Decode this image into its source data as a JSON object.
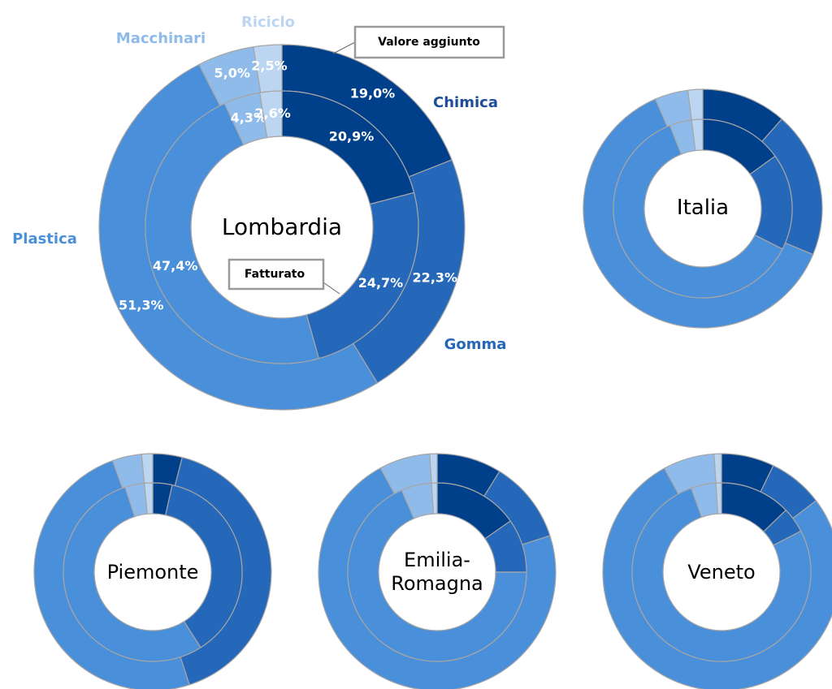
{
  "chart_data": [
    {
      "type": "doughnut",
      "title": "Lombardia",
      "categories": [
        "Chimica",
        "Gomma",
        "Plastica",
        "Macchinari",
        "Riciclo"
      ],
      "colors": [
        "#003f8a",
        "#2567b8",
        "#4a8fd9",
        "#8fbbea",
        "#bcd6f2"
      ],
      "series": [
        {
          "name": "Valore aggiunto",
          "values": [
            19.0,
            22.3,
            51.3,
            5.0,
            2.5
          ],
          "value_labels": [
            "19,0%",
            "22,3%",
            "51,3%",
            "5,0%",
            "2,5%"
          ]
        },
        {
          "name": "Fatturato",
          "values": [
            20.9,
            24.7,
            47.4,
            4.3,
            2.6
          ],
          "value_labels": [
            "20,9%",
            "24,7%",
            "47,4%",
            "4,3%",
            "2,6%"
          ]
        }
      ]
    },
    {
      "type": "doughnut",
      "title": "Italia",
      "colors": [
        "#003f8a",
        "#2567b8",
        "#4a8fd9",
        "#8fbbea",
        "#bcd6f2"
      ],
      "series": [
        {
          "values": [
            11.5,
            19.8,
            62.2,
            4.5,
            2.0
          ]
        },
        {
          "values": [
            15.0,
            17.5,
            61.5,
            4.0,
            2.0
          ]
        }
      ]
    },
    {
      "type": "doughnut",
      "title": "Piemonte",
      "colors": [
        "#003f8a",
        "#2567b8",
        "#4a8fd9",
        "#8fbbea",
        "#bcd6f2"
      ],
      "series": [
        {
          "values": [
            4.0,
            41.0,
            49.5,
            4.0,
            1.5
          ]
        },
        {
          "values": [
            3.5,
            37.5,
            54.0,
            3.5,
            1.5
          ]
        }
      ]
    },
    {
      "type": "doughnut",
      "title": "Emilia-Romagna",
      "colors": [
        "#003f8a",
        "#2567b8",
        "#4a8fd9",
        "#8fbbea",
        "#bcd6f2"
      ],
      "series": [
        {
          "values": [
            8.9,
            11.3,
            72.7,
            7.0,
            1.0
          ]
        },
        {
          "values": [
            15.3,
            9.7,
            68.5,
            5.5,
            1.0
          ]
        }
      ]
    },
    {
      "type": "doughnut",
      "title": "Veneto",
      "colors": [
        "#003f8a",
        "#2567b8",
        "#4a8fd9",
        "#8fbbea",
        "#bcd6f2"
      ],
      "series": [
        {
          "values": [
            7.2,
            7.5,
            77.3,
            7.0,
            1.0
          ]
        },
        {
          "values": [
            12.8,
            4.6,
            77.1,
            4.5,
            1.0
          ]
        }
      ]
    }
  ]
}
